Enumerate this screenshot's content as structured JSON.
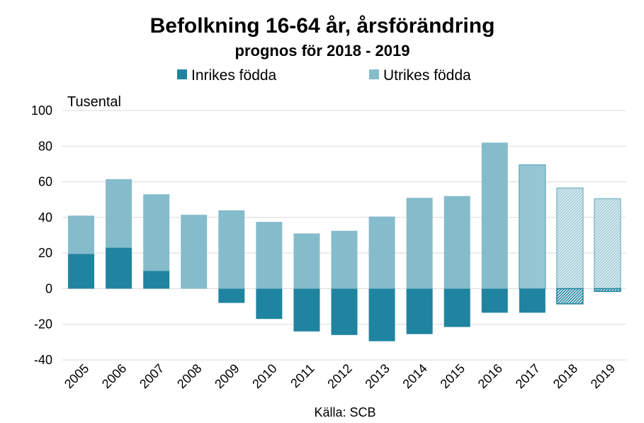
{
  "chart_data": {
    "type": "bar",
    "stacked": true,
    "title": "Befolkning 16-64 år, årsförändring",
    "subtitle": "prognos för 2018 - 2019",
    "ylabel": "Tusental",
    "xlabel": "",
    "source": "Källa: SCB",
    "ylim": [
      -40,
      100
    ],
    "yticks": [
      100,
      80,
      60,
      40,
      20,
      0,
      -20,
      -40
    ],
    "grid": true,
    "legend_position": "top",
    "categories": [
      "2005",
      "2006",
      "2007",
      "2008",
      "2009",
      "2010",
      "2011",
      "2012",
      "2013",
      "2014",
      "2015",
      "2016",
      "2017",
      "2018",
      "2019"
    ],
    "series": [
      {
        "name": "Inrikes födda",
        "color": "#1f84a0",
        "values": [
          19.5,
          23,
          10,
          0,
          -8,
          -17,
          -24,
          -26,
          -29.5,
          -25.5,
          -21.5,
          -13.5,
          -13.5,
          -8.5,
          -1.5
        ]
      },
      {
        "name": "Utrikes födda",
        "color": "#85bccb",
        "values": [
          21.5,
          38.5,
          43,
          41.5,
          44,
          37.5,
          31,
          32.5,
          40.5,
          51,
          52,
          82,
          69.5,
          56.5,
          50.5
        ]
      }
    ],
    "forecast_categories": [
      "2018",
      "2019"
    ]
  }
}
